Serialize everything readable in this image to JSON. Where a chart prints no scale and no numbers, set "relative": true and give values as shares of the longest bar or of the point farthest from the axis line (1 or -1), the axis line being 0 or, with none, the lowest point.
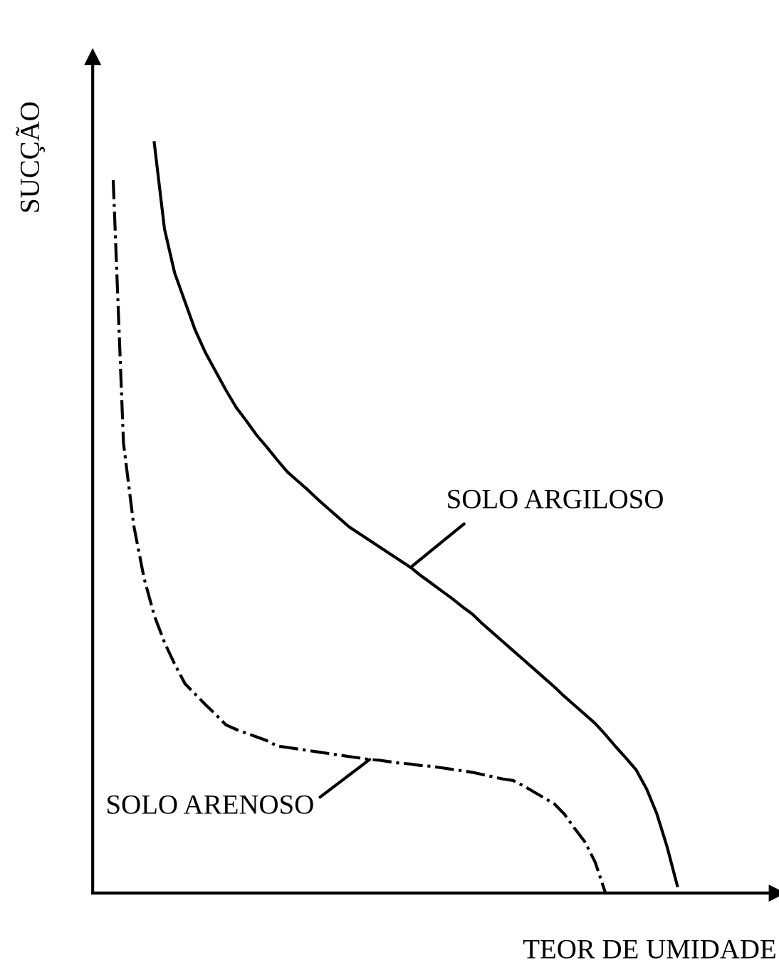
{
  "chart_data": {
    "type": "line",
    "relative": true,
    "xlabel": "TEOR DE UMIDADE",
    "ylabel": "SUCÇÃO",
    "tick_labels": false,
    "legend": false,
    "categories": [
      null,
      null,
      null,
      null,
      null,
      null,
      null,
      null,
      null,
      null,
      null,
      null,
      null,
      null,
      null,
      null,
      null,
      null,
      null,
      null,
      null,
      null,
      null,
      null,
      null,
      null,
      null,
      null,
      null,
      null,
      null,
      null,
      null,
      null,
      null,
      null,
      null,
      null,
      null,
      null,
      null,
      null,
      null,
      null,
      null,
      null,
      null,
      null,
      null,
      null,
      null,
      null,
      null,
      null,
      null,
      null,
      null,
      null
    ],
    "series": [
      {
        "name": "SOLO ARGILOSO",
        "color": "#000000",
        "line_style": "solid",
        "values": [
          null,
          null,
          null,
          null,
          null,
          null,
          1.0,
          0.885,
          0.826,
          0.788,
          0.75,
          0.72,
          0.695,
          0.67,
          0.647,
          0.629,
          0.61,
          0.594,
          0.577,
          0.561,
          0.549,
          0.537,
          0.524,
          0.512,
          0.5,
          0.488,
          0.479,
          0.47,
          0.461,
          0.452,
          0.443,
          0.434,
          0.423,
          0.413,
          0.403,
          0.393,
          0.382,
          0.372,
          0.359,
          0.347,
          0.335,
          0.323,
          0.311,
          0.299,
          0.287,
          0.275,
          0.262,
          0.25,
          0.238,
          0.226,
          0.211,
          0.195,
          0.18,
          0.164,
          0.139,
          0.106,
          0.062,
          0.01
        ]
      },
      {
        "name": "SOLO ARENOSO",
        "color": "#000000",
        "line_style": "dashdot",
        "values": [
          null,
          null,
          0.95,
          0.6,
          0.49,
          0.42,
          0.37,
          0.334,
          0.305,
          0.279,
          0.265,
          0.251,
          0.238,
          0.224,
          0.218,
          0.213,
          0.208,
          0.203,
          0.196,
          0.194,
          0.192,
          0.19,
          0.188,
          0.186,
          0.184,
          0.182,
          0.18,
          0.178,
          0.177,
          0.175,
          0.173,
          0.172,
          0.17,
          0.169,
          0.167,
          0.165,
          0.163,
          0.161,
          0.158,
          0.155,
          0.152,
          0.15,
          0.143,
          0.135,
          0.127,
          0.119,
          0.105,
          0.086,
          0.068,
          0.041,
          0,
          null,
          null,
          null,
          null,
          null,
          null,
          null
        ]
      }
    ]
  }
}
